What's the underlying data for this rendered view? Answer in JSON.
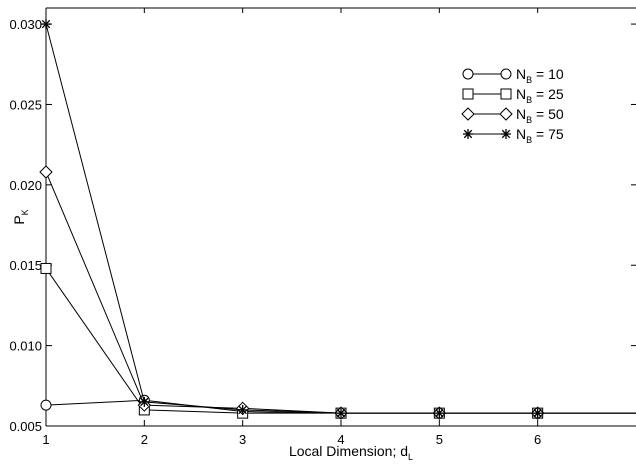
{
  "chart_data": {
    "type": "line",
    "title": "",
    "xlabel": "Local Dimension; d",
    "xlabel_sub": "L",
    "ylabel": "P",
    "ylabel_sub": "K",
    "xlim": [
      1,
      7
    ],
    "ylim": [
      0.005,
      0.031
    ],
    "xticks": [
      1,
      2,
      3,
      4,
      5,
      6
    ],
    "yticks": [
      "0.005",
      "0.010",
      "0.015",
      "0.020",
      "0.025",
      "0.030"
    ],
    "yticks_values": [
      0.005,
      0.01,
      0.015,
      0.02,
      0.025,
      0.03
    ],
    "grid": false,
    "legend_position": "top-right",
    "x": [
      1,
      2,
      3,
      4,
      5,
      6,
      7
    ],
    "series": [
      {
        "name": "10",
        "label_prefix": "N",
        "label_sub": "B",
        "label_suffix": " = 10",
        "marker": "circle",
        "values": [
          0.0063,
          0.0066,
          0.0059,
          0.0058,
          0.0058,
          0.0058,
          0.0058
        ]
      },
      {
        "name": "25",
        "label_prefix": "N",
        "label_sub": "B",
        "label_suffix": " = 25",
        "marker": "square",
        "values": [
          0.0148,
          0.006,
          0.0058,
          0.0058,
          0.0058,
          0.0058,
          0.0058
        ]
      },
      {
        "name": "50",
        "label_prefix": "N",
        "label_sub": "B",
        "label_suffix": " = 50",
        "marker": "diamond",
        "values": [
          0.0208,
          0.0063,
          0.0061,
          0.0058,
          0.0058,
          0.0058,
          0.0058
        ]
      },
      {
        "name": "75",
        "label_prefix": "N",
        "label_sub": "B",
        "label_suffix": " = 75",
        "marker": "asterisk",
        "values": [
          0.03,
          0.0065,
          0.006,
          0.0058,
          0.0058,
          0.0058,
          0.0058
        ]
      }
    ]
  }
}
